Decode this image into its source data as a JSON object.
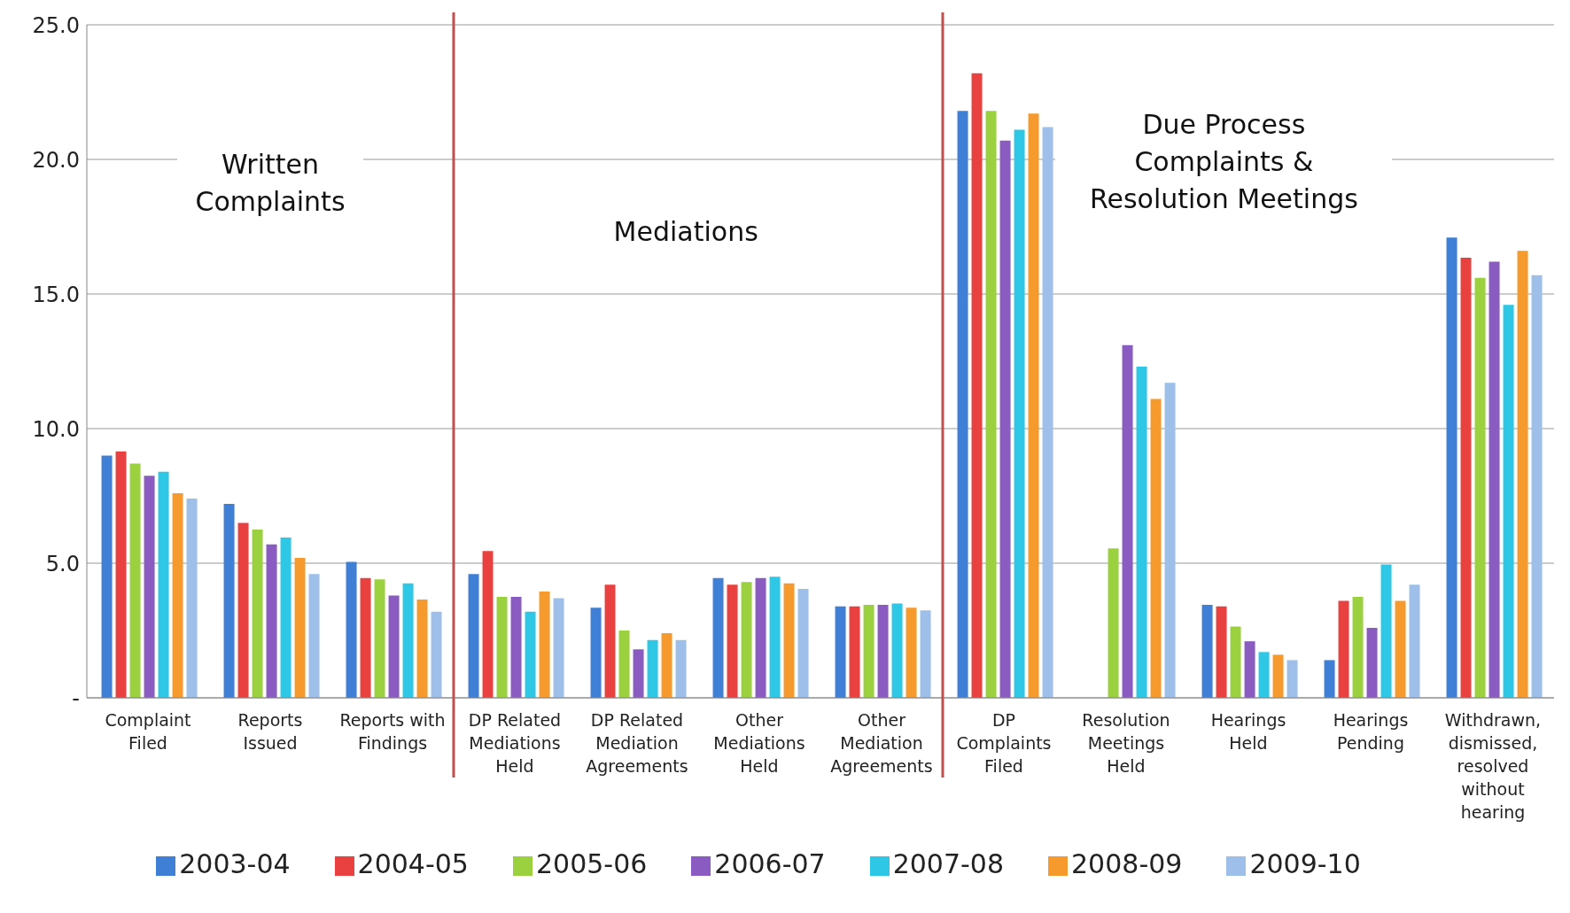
{
  "chart_data": {
    "type": "bar",
    "categories": [
      "Complaint Filed",
      "Reports Issued",
      "Reports with Findings",
      "DP Related Mediations Held",
      "DP Related Mediation Agreements",
      "Other Mediations Held",
      "Other Mediation Agreements",
      "DP Complaints Filed",
      "Resolution Meetings Held",
      "Hearings Held",
      "Hearings Pending",
      "Withdrawn, dismissed, resolved without hearing"
    ],
    "series": [
      {
        "name": "2003-04",
        "color": "#3f7fd6",
        "values": [
          9.0,
          7.2,
          5.05,
          4.6,
          3.35,
          4.45,
          3.4,
          21.8,
          0,
          3.45,
          1.4,
          17.1
        ]
      },
      {
        "name": "2004-05",
        "color": "#e8413f",
        "values": [
          9.15,
          6.5,
          4.45,
          5.45,
          4.2,
          4.2,
          3.4,
          23.2,
          0,
          3.4,
          3.6,
          16.35
        ]
      },
      {
        "name": "2005-06",
        "color": "#9bd13f",
        "values": [
          8.7,
          6.25,
          4.4,
          3.75,
          2.5,
          4.3,
          3.45,
          21.8,
          5.55,
          2.65,
          3.75,
          15.6
        ]
      },
      {
        "name": "2006-07",
        "color": "#8a5cc2",
        "values": [
          8.25,
          5.7,
          3.8,
          3.75,
          1.8,
          4.45,
          3.45,
          20.7,
          13.1,
          2.1,
          2.6,
          16.2
        ]
      },
      {
        "name": "2007-08",
        "color": "#2ec8e6",
        "values": [
          8.4,
          5.95,
          4.25,
          3.2,
          2.15,
          4.5,
          3.5,
          21.1,
          12.3,
          1.7,
          4.95,
          14.6
        ]
      },
      {
        "name": "2008-09",
        "color": "#f79a2e",
        "values": [
          7.6,
          5.2,
          3.65,
          3.95,
          2.4,
          4.25,
          3.35,
          21.7,
          11.1,
          1.6,
          3.6,
          16.6
        ]
      },
      {
        "name": "2009-10",
        "color": "#9dbfea",
        "values": [
          7.4,
          4.6,
          3.2,
          3.7,
          2.15,
          4.05,
          3.25,
          21.2,
          11.7,
          1.4,
          4.2,
          15.7
        ]
      }
    ],
    "ylim": [
      0,
      25
    ],
    "yticks": [
      {
        "value": 0,
        "label": "-"
      },
      {
        "value": 5,
        "label": "5.0"
      },
      {
        "value": 10,
        "label": "10.0"
      },
      {
        "value": 15,
        "label": "15.0"
      },
      {
        "value": 20,
        "label": "20.0"
      },
      {
        "value": 25,
        "label": "25.0"
      }
    ],
    "grid": "y",
    "legend": "bottom",
    "annotations": [
      "Written Complaints",
      "Mediations",
      "Due Process Complaints & Resolution Meetings"
    ]
  }
}
